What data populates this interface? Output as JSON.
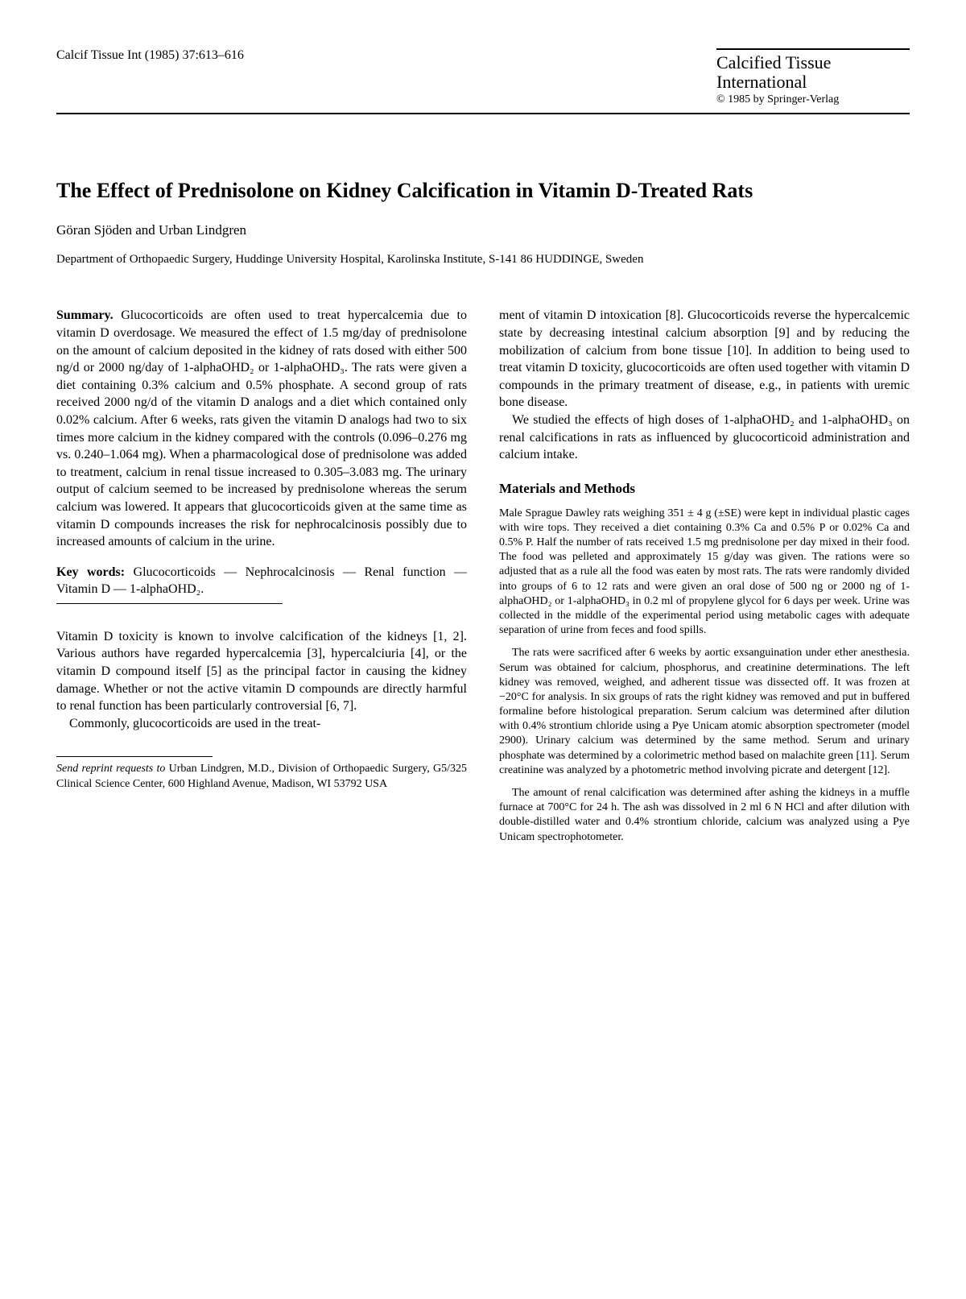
{
  "header": {
    "citation": "Calcif Tissue Int (1985) 37:613–616",
    "journal_name_line1": "Calcified Tissue",
    "journal_name_line2": "International",
    "copyright": "© 1985 by Springer-Verlag"
  },
  "title": "The Effect of Prednisolone on Kidney Calcification in Vitamin D-Treated Rats",
  "authors": "Göran Sjöden and Urban Lindgren",
  "affiliation": "Department of Orthopaedic Surgery, Huddinge University Hospital, Karolinska Institute, S-141 86 HUDDINGE, Sweden",
  "summary": {
    "label": "Summary.",
    "text": " Glucocorticoids are often used to treat hypercalcemia due to vitamin D overdosage. We measured the effect of 1.5 mg/day of prednisolone on the amount of calcium deposited in the kidney of rats dosed with either 500 ng/d or 2000 ng/day of 1-alphaOHD₂ or 1-alphaOHD₃. The rats were given a diet containing 0.3% calcium and 0.5% phosphate. A second group of rats received 2000 ng/d of the vitamin D analogs and a diet which contained only 0.02% calcium. After 6 weeks, rats given the vitamin D analogs had two to six times more calcium in the kidney compared with the controls (0.096–0.276 mg vs. 0.240–1.064 mg). When a pharmacological dose of prednisolone was added to treatment, calcium in renal tissue increased to 0.305–3.083 mg. The urinary output of calcium seemed to be increased by prednisolone whereas the serum calcium was lowered. It appears that glucocorticoids given at the same time as vitamin D compounds increases the risk for nephrocalcinosis possibly due to increased amounts of calcium in the urine."
  },
  "keywords": {
    "label": "Key words:",
    "text": " Glucocorticoids — Nephrocalcinosis — Renal function — Vitamin D — 1-alphaOHD₂."
  },
  "intro": {
    "para1": "Vitamin D toxicity is known to involve calcification of the kidneys [1, 2]. Various authors have regarded hypercalcemia [3], hypercalciuria [4], or the vitamin D compound itself [5] as the principal factor in causing the kidney damage. Whether or not the active vitamin D compounds are directly harmful to renal function has been particularly controversial [6, 7].",
    "para2": "Commonly, glucocorticoids are used in the treat-",
    "para2_cont": "ment of vitamin D intoxication [8]. Glucocorticoids reverse the hypercalcemic state by decreasing intestinal calcium absorption [9] and by reducing the mobilization of calcium from bone tissue [10]. In addition to being used to treat vitamin D toxicity, glucocorticoids are often used together with vitamin D compounds in the primary treatment of disease, e.g., in patients with uremic bone disease.",
    "para3": "We studied the effects of high doses of 1-alphaOHD₂ and 1-alphaOHD₃ on renal calcifications in rats as influenced by glucocorticoid administration and calcium intake."
  },
  "methods": {
    "heading": "Materials and Methods",
    "para1": "Male Sprague Dawley rats weighing 351 ± 4 g (±SE) were kept in individual plastic cages with wire tops. They received a diet containing 0.3% Ca and 0.5% P or 0.02% Ca and 0.5% P. Half the number of rats received 1.5 mg prednisolone per day mixed in their food. The food was pelleted and approximately 15 g/day was given. The rations were so adjusted that as a rule all the food was eaten by most rats. The rats were randomly divided into groups of 6 to 12 rats and were given an oral dose of 500 ng or 2000 ng of 1-alphaOHD₂ or 1-alphaOHD₃ in 0.2 ml of propylene glycol for 6 days per week. Urine was collected in the middle of the experimental period using metabolic cages with adequate separation of urine from feces and food spills.",
    "para2": "The rats were sacrificed after 6 weeks by aortic exsanguination under ether anesthesia. Serum was obtained for calcium, phosphorus, and creatinine determinations. The left kidney was removed, weighed, and adherent tissue was dissected off. It was frozen at −20°C for analysis. In six groups of rats the right kidney was removed and put in buffered formaline before histological preparation. Serum calcium was determined after dilution with 0.4% strontium chloride using a Pye Unicam atomic absorption spectrometer (model 2900). Urinary calcium was determined by the same method. Serum and urinary phosphate was determined by a colorimetric method based on malachite green [11]. Serum creatinine was analyzed by a photometric method involving picrate and detergent [12].",
    "para3": "The amount of renal calcification was determined after ashing the kidneys in a muffle furnace at 700°C for 24 h. The ash was dissolved in 2 ml 6 N HCl and after dilution with double-distilled water and 0.4% strontium chloride, calcium was analyzed using a Pye Unicam spectrophotometer."
  },
  "footnote": {
    "label": "Send reprint requests to ",
    "text": "Urban Lindgren, M.D., Division of Orthopaedic Surgery, G5/325 Clinical Science Center, 600 Highland Avenue, Madison, WI 53792 USA"
  }
}
